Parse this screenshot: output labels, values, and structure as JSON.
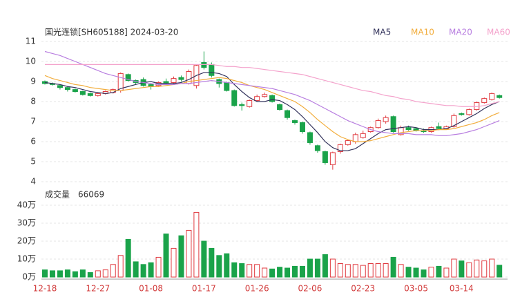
{
  "chart_data": [
    {
      "type": "candlestick",
      "title": "国光连锁[SH605188] 2024-03-20",
      "categories": [
        "12-18",
        null,
        null,
        null,
        null,
        null,
        null,
        "12-27",
        null,
        null,
        null,
        null,
        null,
        null,
        "01-08",
        null,
        null,
        null,
        null,
        null,
        null,
        "01-17",
        null,
        null,
        null,
        null,
        null,
        null,
        "01-26",
        null,
        null,
        null,
        null,
        null,
        null,
        "02-06",
        null,
        null,
        null,
        null,
        null,
        null,
        "02-23",
        null,
        null,
        null,
        null,
        null,
        null,
        "03-05",
        null,
        null,
        null,
        null,
        null,
        "03-14",
        null,
        null,
        null,
        null,
        null
      ],
      "open": [
        9.0,
        8.9,
        8.8,
        8.7,
        8.6,
        8.5,
        8.4,
        8.3,
        8.4,
        8.45,
        8.55,
        9.35,
        9.05,
        9.1,
        8.85,
        8.8,
        9.0,
        8.95,
        9.2,
        8.9,
        8.8,
        9.95,
        9.85,
        9.1,
        8.95,
        8.55,
        7.85,
        7.75,
        8.05,
        8.25,
        8.3,
        7.85,
        7.55,
        7.05,
        6.95,
        6.45,
        5.8,
        5.5,
        4.85,
        5.5,
        5.85,
        6.0,
        6.2,
        6.5,
        6.7,
        7.0,
        7.25,
        6.35,
        6.7,
        6.65,
        6.55,
        6.5,
        6.75,
        6.65,
        6.75,
        7.4,
        7.35,
        7.6,
        7.95,
        8.1,
        8.3
      ],
      "high": [
        9.05,
        8.95,
        8.85,
        8.75,
        8.65,
        8.55,
        8.45,
        8.45,
        8.55,
        8.65,
        9.45,
        9.4,
        9.1,
        9.2,
        8.9,
        9.0,
        9.15,
        9.25,
        9.3,
        9.6,
        9.85,
        10.5,
        9.95,
        9.15,
        9.0,
        8.6,
        7.95,
        8.1,
        8.35,
        8.45,
        8.35,
        7.9,
        7.6,
        7.1,
        7.0,
        6.5,
        5.85,
        5.55,
        5.5,
        5.9,
        6.1,
        6.45,
        6.55,
        6.75,
        7.15,
        7.3,
        7.3,
        6.8,
        6.8,
        6.7,
        6.65,
        6.75,
        6.95,
        6.8,
        7.4,
        7.45,
        7.65,
        8.0,
        8.2,
        8.45,
        8.35
      ],
      "low": [
        8.85,
        8.8,
        8.6,
        8.5,
        8.45,
        8.3,
        8.25,
        8.25,
        8.35,
        8.4,
        8.45,
        9.0,
        8.85,
        8.75,
        8.6,
        8.75,
        8.85,
        8.9,
        9.0,
        8.85,
        8.65,
        9.6,
        9.2,
        8.7,
        8.5,
        7.75,
        7.55,
        7.7,
        8.0,
        8.2,
        7.95,
        7.55,
        7.1,
        6.85,
        6.4,
        5.85,
        5.45,
        4.85,
        4.6,
        5.4,
        5.8,
        5.9,
        6.15,
        6.45,
        6.65,
        6.9,
        6.45,
        6.3,
        6.55,
        6.5,
        6.45,
        6.45,
        6.6,
        6.6,
        6.7,
        7.3,
        7.3,
        7.55,
        7.9,
        8.05,
        8.15
      ],
      "close": [
        8.9,
        8.85,
        8.7,
        8.6,
        8.5,
        8.35,
        8.3,
        8.4,
        8.5,
        8.6,
        9.4,
        9.05,
        8.95,
        8.8,
        8.75,
        8.95,
        8.9,
        9.15,
        9.1,
        9.5,
        9.8,
        9.7,
        9.3,
        8.9,
        8.55,
        7.8,
        7.8,
        8.05,
        8.25,
        8.35,
        8.0,
        7.6,
        7.2,
        6.95,
        6.5,
        5.95,
        5.55,
        4.95,
        5.45,
        5.85,
        6.05,
        6.35,
        6.4,
        6.7,
        7.05,
        7.2,
        6.5,
        6.7,
        6.6,
        6.55,
        6.5,
        6.7,
        6.65,
        6.75,
        7.3,
        7.35,
        7.6,
        7.95,
        8.15,
        8.4,
        8.2
      ],
      "up_color": "#e0383e",
      "down_color": "#1aa34a",
      "series": [
        {
          "name": "MA5",
          "color": "#33335c",
          "values": [
            8.95,
            8.9,
            8.85,
            8.75,
            8.7,
            8.6,
            8.5,
            8.45,
            8.4,
            8.45,
            8.65,
            8.75,
            8.85,
            8.95,
            9.0,
            8.9,
            8.9,
            8.9,
            8.95,
            9.1,
            9.3,
            9.45,
            9.45,
            9.4,
            9.25,
            8.85,
            8.5,
            8.2,
            8.0,
            8.0,
            8.1,
            8.05,
            7.85,
            7.6,
            7.25,
            6.85,
            6.45,
            6.0,
            5.7,
            5.55,
            5.55,
            5.65,
            5.9,
            6.15,
            6.4,
            6.6,
            6.65,
            6.7,
            6.75,
            6.7,
            6.6,
            6.6,
            6.6,
            6.65,
            6.8,
            7.0,
            7.2,
            7.4,
            7.65,
            7.85,
            8.0
          ]
        },
        {
          "name": "MA10",
          "color": "#f2ad3c",
          "values": [
            9.3,
            9.15,
            9.05,
            8.95,
            8.85,
            8.8,
            8.7,
            8.65,
            8.6,
            8.55,
            8.55,
            8.6,
            8.65,
            8.7,
            8.75,
            8.75,
            8.8,
            8.85,
            8.9,
            9.0,
            9.05,
            9.1,
            9.15,
            9.2,
            9.15,
            9.05,
            8.95,
            8.8,
            8.7,
            8.6,
            8.45,
            8.3,
            8.15,
            8.0,
            7.75,
            7.45,
            7.1,
            6.8,
            6.5,
            6.25,
            6.1,
            6.0,
            6.0,
            6.05,
            6.15,
            6.25,
            6.35,
            6.45,
            6.5,
            6.55,
            6.55,
            6.55,
            6.6,
            6.6,
            6.65,
            6.75,
            6.85,
            6.95,
            7.1,
            7.3,
            7.45
          ]
        },
        {
          "name": "MA20",
          "color": "#b87ee0",
          "values": [
            10.5,
            10.4,
            10.3,
            10.15,
            10.0,
            9.85,
            9.7,
            9.55,
            9.4,
            9.3,
            9.2,
            9.1,
            9.0,
            8.95,
            8.9,
            8.85,
            8.85,
            8.85,
            8.9,
            8.9,
            8.95,
            9.0,
            9.05,
            9.0,
            8.95,
            8.9,
            8.85,
            8.8,
            8.75,
            8.7,
            8.65,
            8.55,
            8.45,
            8.35,
            8.2,
            8.05,
            7.85,
            7.65,
            7.45,
            7.25,
            7.05,
            6.9,
            6.75,
            6.6,
            6.5,
            6.45,
            6.4,
            6.4,
            6.4,
            6.35,
            6.35,
            6.35,
            6.3,
            6.3,
            6.35,
            6.4,
            6.5,
            6.6,
            6.75,
            6.9,
            7.05
          ]
        },
        {
          "name": "MA60",
          "color": "#f4a3cc",
          "values": [
            9.85,
            9.85,
            9.85,
            9.85,
            9.85,
            9.85,
            9.85,
            9.85,
            9.85,
            9.85,
            9.85,
            9.85,
            9.85,
            9.85,
            9.85,
            9.85,
            9.85,
            9.85,
            9.85,
            9.85,
            9.85,
            9.85,
            9.85,
            9.8,
            9.75,
            9.75,
            9.7,
            9.7,
            9.65,
            9.6,
            9.55,
            9.5,
            9.45,
            9.4,
            9.35,
            9.25,
            9.15,
            9.05,
            8.95,
            8.85,
            8.75,
            8.65,
            8.55,
            8.5,
            8.4,
            8.3,
            8.25,
            8.15,
            8.1,
            8.0,
            7.95,
            7.9,
            7.85,
            7.8,
            7.8,
            7.75,
            7.75,
            7.75,
            7.8,
            7.9,
            8.0
          ]
        }
      ],
      "ylim": [
        4,
        11
      ],
      "yticks": [
        4,
        5,
        6,
        7,
        8,
        9,
        10,
        11
      ],
      "grid": true
    },
    {
      "type": "bar",
      "title": "成交量",
      "values": [
        40000,
        35000,
        35000,
        40000,
        30000,
        40000,
        25000,
        35000,
        40000,
        70000,
        120000,
        210000,
        85000,
        70000,
        80000,
        110000,
        240000,
        160000,
        230000,
        260000,
        360000,
        200000,
        160000,
        120000,
        130000,
        80000,
        75000,
        70000,
        70000,
        50000,
        45000,
        55000,
        50000,
        60000,
        60000,
        100000,
        100000,
        125000,
        100000,
        75000,
        70000,
        70000,
        65000,
        75000,
        75000,
        75000,
        110000,
        70000,
        55000,
        50000,
        40000,
        55000,
        60000,
        50000,
        100000,
        90000,
        80000,
        95000,
        90000,
        100000,
        66069
      ],
      "ylim": [
        0,
        400000
      ],
      "yticks": [
        {
          "value": 0,
          "label": "0万"
        },
        {
          "value": 100000,
          "label": "10万"
        },
        {
          "value": 200000,
          "label": "20万"
        },
        {
          "value": 300000,
          "label": "30万"
        },
        {
          "value": 400000,
          "label": "40万"
        }
      ],
      "grid": true
    }
  ]
}
